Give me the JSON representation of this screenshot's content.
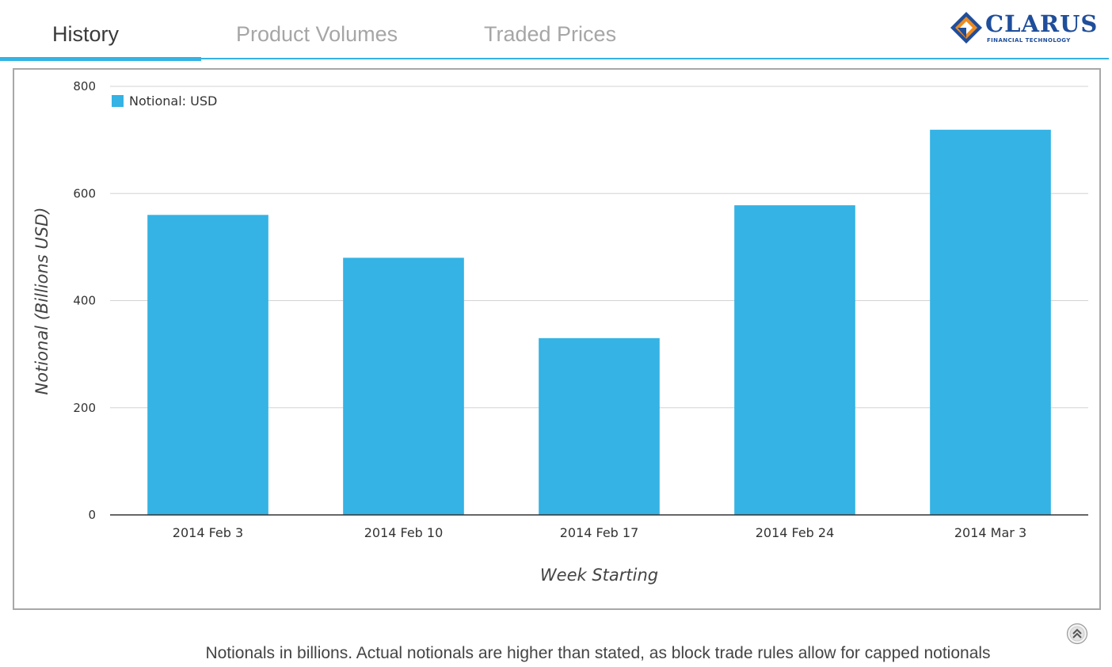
{
  "tabs": [
    {
      "label": "History",
      "active": true
    },
    {
      "label": "Product Volumes",
      "active": false
    },
    {
      "label": "Traded Prices",
      "active": false
    }
  ],
  "logo": {
    "word": "CLARUS",
    "subtitle": "FINANCIAL TECHNOLOGY"
  },
  "colors": {
    "accent": "#34b3e4",
    "bar": "#34b3e4",
    "logo_blue": "#1f4e9b",
    "logo_orange": "#f08a1c"
  },
  "chart_data": {
    "type": "bar",
    "categories": [
      "2014 Feb 3",
      "2014 Feb 10",
      "2014 Feb 17",
      "2014 Feb 24",
      "2014 Mar 3"
    ],
    "series": [
      {
        "name": "Notional: USD",
        "values": [
          560,
          480,
          330,
          578,
          719
        ]
      }
    ],
    "xlabel": "Week Starting",
    "ylabel": "Notional (Billions USD)",
    "ylim": [
      0,
      800
    ],
    "yticks": [
      0,
      200,
      400,
      600,
      800
    ],
    "grid": true,
    "legend_position": "top-left"
  },
  "footnote": "Notionals in billions. Actual notionals are higher than stated, as block trade rules allow for capped notionals",
  "icons": {
    "scroll_top": "scroll-to-top-icon"
  }
}
